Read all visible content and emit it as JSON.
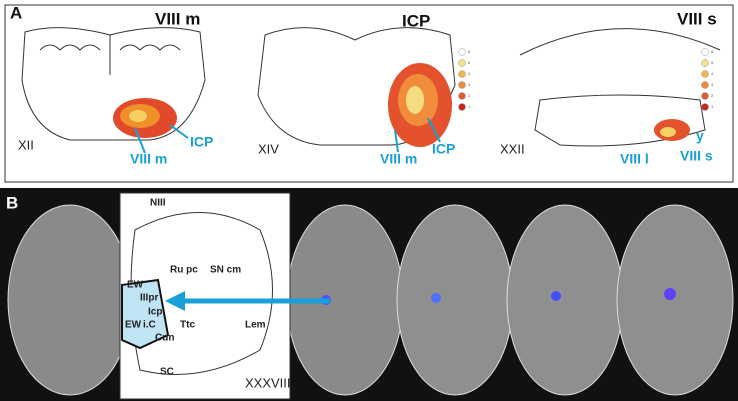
{
  "panel_a": {
    "label": "A",
    "sections": [
      {
        "title": "VIII m",
        "level": "XII",
        "labels": [
          "ICP",
          "VIII m"
        ]
      },
      {
        "title": "ICP",
        "level": "XIV",
        "labels": [
          "VIII m",
          "ICP"
        ]
      },
      {
        "title": "VIII s",
        "level": "XXII",
        "labels": [
          "VIII l",
          "VIII s",
          "y"
        ]
      }
    ],
    "legend": [
      "6",
      "5",
      "4",
      "3",
      "2",
      "1"
    ]
  },
  "panel_b": {
    "label": "B",
    "level": "XXXVIII",
    "labels": [
      "NIII",
      "Ru pc",
      "SN cm",
      "EW",
      "IIIpr",
      "Icp",
      "EW",
      "i.C",
      "Ttc",
      "Cun",
      "Lem",
      "SC"
    ]
  }
}
